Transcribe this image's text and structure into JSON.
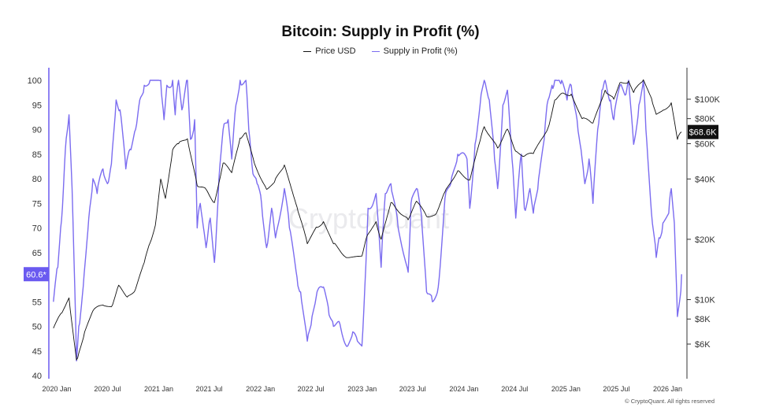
{
  "chart_data": {
    "type": "line",
    "title": "Bitcoin: Supply in Profit (%)",
    "legend_placement": "top-center",
    "grid": false,
    "x_ticks": [
      "2020 Jan",
      "2020 Jul",
      "2021 Jan",
      "2021 Jul",
      "2022 Jan",
      "2022 Jul",
      "2023 Jan",
      "2023 Jul",
      "2024 Jan",
      "2024 Jul",
      "2025 Jan",
      "2025 Jul",
      "2026 Jan"
    ],
    "x_range": [
      "2019-12-15",
      "2026-02-28"
    ],
    "left_axis": {
      "ticks": [
        100,
        95,
        90,
        85,
        80,
        75,
        70,
        65,
        60,
        55,
        50,
        45,
        40
      ],
      "range": [
        40,
        100
      ],
      "current_label": "60.6*",
      "current_value": 60.6,
      "color": "#6a5af0"
    },
    "right_axis": {
      "scale": "log",
      "ticks": [
        "$100K",
        "$80K",
        "$60K",
        "$40K",
        "$20K",
        "$10K",
        "$8K",
        "$6K"
      ],
      "tick_values": [
        100000,
        80000,
        60000,
        40000,
        20000,
        10000,
        8000,
        6000
      ],
      "current_label": "$68.6K",
      "current_value": 68600
    },
    "series": [
      {
        "name": "Price USD",
        "color": "#111111",
        "points": [
          [
            "2019-12-20",
            7200
          ],
          [
            "2020-01-20",
            8600
          ],
          [
            "2020-02-14",
            10200
          ],
          [
            "2020-03-12",
            5000
          ],
          [
            "2020-03-16",
            5100
          ],
          [
            "2020-04-10",
            6900
          ],
          [
            "2020-05-10",
            8800
          ],
          [
            "2020-06-15",
            9400
          ],
          [
            "2020-07-15",
            9200
          ],
          [
            "2020-08-10",
            11800
          ],
          [
            "2020-09-10",
            10300
          ],
          [
            "2020-10-10",
            11300
          ],
          [
            "2020-11-10",
            15300
          ],
          [
            "2020-12-01",
            19200
          ],
          [
            "2020-12-20",
            23500
          ],
          [
            "2021-01-08",
            40000
          ],
          [
            "2021-01-25",
            32000
          ],
          [
            "2021-02-20",
            56000
          ],
          [
            "2021-03-13",
            60000
          ],
          [
            "2021-04-14",
            63500
          ],
          [
            "2021-05-19",
            37000
          ],
          [
            "2021-06-20",
            35500
          ],
          [
            "2021-07-20",
            30500
          ],
          [
            "2021-08-20",
            48000
          ],
          [
            "2021-09-20",
            43000
          ],
          [
            "2021-10-20",
            64000
          ],
          [
            "2021-11-10",
            68000
          ],
          [
            "2021-12-10",
            48000
          ],
          [
            "2022-01-23",
            35500
          ],
          [
            "2022-02-20",
            38500
          ],
          [
            "2022-03-28",
            47000
          ],
          [
            "2022-05-12",
            29000
          ],
          [
            "2022-06-18",
            19000
          ],
          [
            "2022-07-20",
            23000
          ],
          [
            "2022-08-15",
            24500
          ],
          [
            "2022-09-20",
            19000
          ],
          [
            "2022-11-10",
            16200
          ],
          [
            "2022-12-31",
            16500
          ],
          [
            "2023-01-20",
            21000
          ],
          [
            "2023-02-20",
            24500
          ],
          [
            "2023-03-10",
            20000
          ],
          [
            "2023-04-14",
            30500
          ],
          [
            "2023-06-15",
            25000
          ],
          [
            "2023-07-15",
            31000
          ],
          [
            "2023-08-20",
            26000
          ],
          [
            "2023-09-20",
            26500
          ],
          [
            "2023-10-25",
            34500
          ],
          [
            "2023-12-10",
            44000
          ],
          [
            "2024-01-22",
            39500
          ],
          [
            "2024-02-28",
            62000
          ],
          [
            "2024-03-14",
            73000
          ],
          [
            "2024-05-01",
            57000
          ],
          [
            "2024-06-05",
            71000
          ],
          [
            "2024-07-05",
            55000
          ],
          [
            "2024-08-05",
            52000
          ],
          [
            "2024-09-06",
            53500
          ],
          [
            "2024-10-29",
            72000
          ],
          [
            "2024-11-22",
            99000
          ],
          [
            "2024-12-17",
            107000
          ],
          [
            "2025-01-20",
            106000
          ],
          [
            "2025-02-28",
            80000
          ],
          [
            "2025-04-08",
            76000
          ],
          [
            "2025-05-22",
            111000
          ],
          [
            "2025-06-22",
            100000
          ],
          [
            "2025-07-14",
            121000
          ],
          [
            "2025-08-14",
            123000
          ],
          [
            "2025-09-01",
            108000
          ],
          [
            "2025-10-06",
            125000
          ],
          [
            "2025-11-04",
            101000
          ],
          [
            "2025-11-21",
            84000
          ],
          [
            "2025-12-15",
            88000
          ],
          [
            "2026-01-14",
            96000
          ],
          [
            "2026-02-05",
            63000
          ],
          [
            "2026-02-20",
            68600
          ]
        ]
      },
      {
        "name": "Supply in Profit (%)",
        "color": "#7b6cf0",
        "points": [
          [
            "2019-12-20",
            55
          ],
          [
            "2020-01-05",
            62
          ],
          [
            "2020-01-15",
            70
          ],
          [
            "2020-01-25",
            78
          ],
          [
            "2020-02-01",
            86
          ],
          [
            "2020-02-14",
            93
          ],
          [
            "2020-02-25",
            78
          ],
          [
            "2020-03-12",
            43
          ],
          [
            "2020-03-20",
            50
          ],
          [
            "2020-04-05",
            58
          ],
          [
            "2020-04-25",
            72
          ],
          [
            "2020-05-10",
            80
          ],
          [
            "2020-05-25",
            77
          ],
          [
            "2020-06-15",
            82
          ],
          [
            "2020-07-01",
            79
          ],
          [
            "2020-07-15",
            83
          ],
          [
            "2020-08-01",
            96
          ],
          [
            "2020-08-15",
            94
          ],
          [
            "2020-09-05",
            82
          ],
          [
            "2020-09-20",
            86
          ],
          [
            "2020-10-10",
            90
          ],
          [
            "2020-10-25",
            96
          ],
          [
            "2020-11-10",
            99
          ],
          [
            "2020-12-01",
            100
          ],
          [
            "2020-12-20",
            100
          ],
          [
            "2021-01-08",
            100
          ],
          [
            "2021-01-20",
            92
          ],
          [
            "2021-01-30",
            99
          ],
          [
            "2021-02-20",
            100
          ],
          [
            "2021-03-01",
            93
          ],
          [
            "2021-03-13",
            100
          ],
          [
            "2021-03-25",
            94
          ],
          [
            "2021-04-14",
            100
          ],
          [
            "2021-04-25",
            88
          ],
          [
            "2021-05-10",
            92
          ],
          [
            "2021-05-19",
            70
          ],
          [
            "2021-05-30",
            75
          ],
          [
            "2021-06-20",
            66
          ],
          [
            "2021-07-05",
            72
          ],
          [
            "2021-07-20",
            63
          ],
          [
            "2021-08-05",
            80
          ],
          [
            "2021-08-20",
            90
          ],
          [
            "2021-09-07",
            92
          ],
          [
            "2021-09-20",
            84
          ],
          [
            "2021-10-05",
            95
          ],
          [
            "2021-10-20",
            100
          ],
          [
            "2021-11-10",
            100
          ],
          [
            "2021-11-20",
            90
          ],
          [
            "2021-12-05",
            81
          ],
          [
            "2021-12-20",
            79
          ],
          [
            "2022-01-05",
            75
          ],
          [
            "2022-01-23",
            66
          ],
          [
            "2022-02-10",
            74
          ],
          [
            "2022-02-24",
            68
          ],
          [
            "2022-03-28",
            78
          ],
          [
            "2022-04-15",
            70
          ],
          [
            "2022-05-12",
            60
          ],
          [
            "2022-05-25",
            57
          ],
          [
            "2022-06-18",
            47
          ],
          [
            "2022-07-05",
            52
          ],
          [
            "2022-07-20",
            56
          ],
          [
            "2022-08-15",
            58
          ],
          [
            "2022-09-01",
            54
          ],
          [
            "2022-09-20",
            50
          ],
          [
            "2022-10-10",
            51
          ],
          [
            "2022-11-10",
            46
          ],
          [
            "2022-11-25",
            48
          ],
          [
            "2022-12-15",
            47
          ],
          [
            "2022-12-31",
            46
          ],
          [
            "2023-01-14",
            62
          ],
          [
            "2023-01-22",
            74
          ],
          [
            "2023-02-20",
            77
          ],
          [
            "2023-03-10",
            62
          ],
          [
            "2023-03-25",
            77
          ],
          [
            "2023-04-14",
            79
          ],
          [
            "2023-05-10",
            70
          ],
          [
            "2023-06-15",
            61
          ],
          [
            "2023-06-25",
            75
          ],
          [
            "2023-07-15",
            78
          ],
          [
            "2023-08-01",
            73
          ],
          [
            "2023-08-20",
            57
          ],
          [
            "2023-09-10",
            55
          ],
          [
            "2023-10-01",
            58
          ],
          [
            "2023-10-25",
            76
          ],
          [
            "2023-11-15",
            79
          ],
          [
            "2023-12-10",
            85
          ],
          [
            "2024-01-12",
            84
          ],
          [
            "2024-01-22",
            74
          ],
          [
            "2024-02-10",
            87
          ],
          [
            "2024-02-28",
            95
          ],
          [
            "2024-03-14",
            100
          ],
          [
            "2024-04-01",
            96
          ],
          [
            "2024-04-20",
            84
          ],
          [
            "2024-05-01",
            78
          ],
          [
            "2024-05-20",
            95
          ],
          [
            "2024-06-05",
            98
          ],
          [
            "2024-06-25",
            82
          ],
          [
            "2024-07-05",
            72
          ],
          [
            "2024-07-25",
            85
          ],
          [
            "2024-08-05",
            74
          ],
          [
            "2024-08-25",
            78
          ],
          [
            "2024-09-06",
            73
          ],
          [
            "2024-09-25",
            80
          ],
          [
            "2024-10-15",
            88
          ],
          [
            "2024-10-29",
            96
          ],
          [
            "2024-11-12",
            99
          ],
          [
            "2024-11-22",
            100
          ],
          [
            "2024-12-05",
            100
          ],
          [
            "2024-12-17",
            100
          ],
          [
            "2025-01-05",
            96
          ],
          [
            "2025-01-20",
            99
          ],
          [
            "2025-02-10",
            92
          ],
          [
            "2025-02-28",
            84
          ],
          [
            "2025-03-10",
            79
          ],
          [
            "2025-03-25",
            84
          ],
          [
            "2025-04-08",
            75
          ],
          [
            "2025-04-25",
            90
          ],
          [
            "2025-05-10",
            98
          ],
          [
            "2025-05-22",
            100
          ],
          [
            "2025-06-10",
            96
          ],
          [
            "2025-06-22",
            92
          ],
          [
            "2025-07-14",
            99
          ],
          [
            "2025-08-01",
            97
          ],
          [
            "2025-08-14",
            100
          ],
          [
            "2025-09-01",
            87
          ],
          [
            "2025-09-20",
            95
          ],
          [
            "2025-10-06",
            100
          ],
          [
            "2025-10-15",
            90
          ],
          [
            "2025-11-04",
            73
          ],
          [
            "2025-11-21",
            64
          ],
          [
            "2025-12-01",
            68
          ],
          [
            "2025-12-15",
            71
          ],
          [
            "2026-01-05",
            73
          ],
          [
            "2026-01-14",
            78
          ],
          [
            "2026-01-25",
            71
          ],
          [
            "2026-02-05",
            52
          ],
          [
            "2026-02-15",
            56
          ],
          [
            "2026-02-20",
            60.6
          ]
        ]
      }
    ],
    "annotations": [
      "CryptoQuant"
    ],
    "footer": "© CryptoQuant. All rights reserved"
  }
}
